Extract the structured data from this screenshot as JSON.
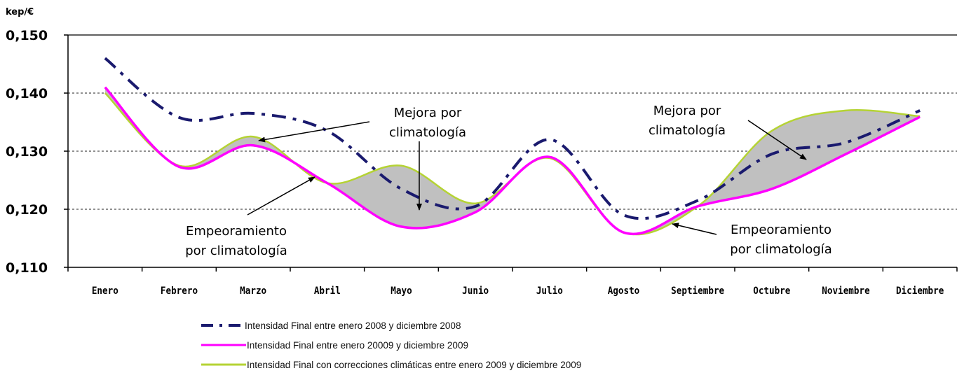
{
  "chart_data": {
    "type": "line",
    "unit_label": "kep/€",
    "ylim": [
      0.11,
      0.15
    ],
    "yticks": [
      "0,110",
      "0,120",
      "0,130",
      "0,140",
      "0,150"
    ],
    "ytick_values": [
      0.11,
      0.12,
      0.13,
      0.14,
      0.15
    ],
    "categories": [
      "Enero",
      "Febrero",
      "Marzo",
      "Abril",
      "Mayo",
      "Junio",
      "Julio",
      "Agosto",
      "Septiembre",
      "Octubre",
      "Noviembre",
      "Diciembre"
    ],
    "grid": "horizontal dotted",
    "series": [
      {
        "name": "Intensidad Final entre enero 2008 y diciembre 2008",
        "color": "#1a1a6e",
        "style": "dash-dot",
        "values": [
          0.146,
          0.1358,
          0.1365,
          0.1335,
          0.1235,
          0.1205,
          0.132,
          0.119,
          0.1215,
          0.1295,
          0.1315,
          0.137
        ]
      },
      {
        "name": "Intensidad Final entre enero 20009 y diciembre 2009",
        "color": "#ff00ff",
        "style": "solid",
        "values": [
          0.141,
          0.1273,
          0.131,
          0.1245,
          0.117,
          0.1195,
          0.129,
          0.116,
          0.1205,
          0.1235,
          0.1295,
          0.1359
        ]
      },
      {
        "name": "Intensidad Final con correcciones climáticas entre enero 2009 y diciembre 2009",
        "color": "#b5d334",
        "style": "solid",
        "values": [
          0.14,
          0.1275,
          0.1325,
          0.1245,
          0.1275,
          0.121,
          0.1288,
          0.116,
          0.1205,
          0.1335,
          0.137,
          0.136
        ]
      }
    ],
    "annotations": [
      {
        "line1": "Mejora por",
        "line2": "climatología"
      },
      {
        "line1": "Empeoramiento",
        "line2": "por climatología"
      },
      {
        "line1": "Mejora por",
        "line2": "climatología"
      },
      {
        "line1": "Empeoramiento",
        "line2": "por climatología"
      }
    ],
    "fill_between": "series 2 and series 3 shaded gray"
  }
}
